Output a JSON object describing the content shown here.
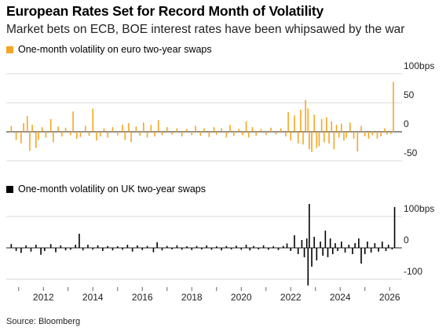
{
  "title": "European Rates Set for Record Month of Volatility",
  "subtitle": "Market bets on ECB, BOE interest rates have been whipsawed by the war",
  "source": "Source: Bloomberg",
  "colors": {
    "euro": "#f5a623",
    "uk": "#000000",
    "grid": "#d9d9d9",
    "zero": "#222222"
  },
  "x_ticks": [
    "2012",
    "2014",
    "2016",
    "2018",
    "2020",
    "2022",
    "2024",
    "2026"
  ],
  "chart_data": [
    {
      "type": "bar",
      "title": "",
      "legend": "One-month volatility on euro two-year swaps",
      "ylabel": "",
      "ylim": [
        -50,
        100
      ],
      "y_ticks": [
        "100bps",
        "50",
        "0",
        "-50"
      ],
      "x_range": [
        2010.5,
        2026.5
      ],
      "series": [
        {
          "values": [
            [
              2010.7,
              10
            ],
            [
              2010.9,
              -14
            ],
            [
              2011.1,
              -20
            ],
            [
              2011.2,
              15
            ],
            [
              2011.35,
              27
            ],
            [
              2011.45,
              -33
            ],
            [
              2011.55,
              12
            ],
            [
              2011.7,
              -28
            ],
            [
              2011.8,
              -14
            ],
            [
              2011.95,
              8
            ],
            [
              2012.1,
              -10
            ],
            [
              2012.3,
              22
            ],
            [
              2012.4,
              -18
            ],
            [
              2012.6,
              9
            ],
            [
              2012.75,
              -8
            ],
            [
              2012.9,
              7
            ],
            [
              2013.1,
              -6
            ],
            [
              2013.2,
              35
            ],
            [
              2013.35,
              -12
            ],
            [
              2013.5,
              -9
            ],
            [
              2013.7,
              10
            ],
            [
              2013.85,
              -7
            ],
            [
              2014.0,
              40
            ],
            [
              2014.15,
              -15
            ],
            [
              2014.3,
              -8
            ],
            [
              2014.45,
              6
            ],
            [
              2014.6,
              -10
            ],
            [
              2014.8,
              8
            ],
            [
              2015.0,
              -6
            ],
            [
              2015.2,
              12
            ],
            [
              2015.3,
              -14
            ],
            [
              2015.45,
              15
            ],
            [
              2015.55,
              -18
            ],
            [
              2015.75,
              9
            ],
            [
              2015.9,
              -7
            ],
            [
              2016.05,
              16
            ],
            [
              2016.2,
              -10
            ],
            [
              2016.35,
              12
            ],
            [
              2016.5,
              -8
            ],
            [
              2016.65,
              20
            ],
            [
              2016.8,
              -6
            ],
            [
              2017.0,
              8
            ],
            [
              2017.2,
              -5
            ],
            [
              2017.4,
              6
            ],
            [
              2017.6,
              -8
            ],
            [
              2017.8,
              5
            ],
            [
              2018.0,
              -6
            ],
            [
              2018.15,
              10
            ],
            [
              2018.35,
              -7
            ],
            [
              2018.5,
              6
            ],
            [
              2018.7,
              -9
            ],
            [
              2018.9,
              8
            ],
            [
              2019.0,
              -5
            ],
            [
              2019.2,
              6
            ],
            [
              2019.4,
              -10
            ],
            [
              2019.55,
              12
            ],
            [
              2019.7,
              -7
            ],
            [
              2019.9,
              5
            ],
            [
              2020.05,
              -6
            ],
            [
              2020.2,
              18
            ],
            [
              2020.3,
              -10
            ],
            [
              2020.45,
              8
            ],
            [
              2020.6,
              -7
            ],
            [
              2020.8,
              5
            ],
            [
              2021.0,
              -6
            ],
            [
              2021.2,
              7
            ],
            [
              2021.4,
              -5
            ],
            [
              2021.6,
              6
            ],
            [
              2021.8,
              -8
            ],
            [
              2021.9,
              34
            ],
            [
              2022.0,
              -15
            ],
            [
              2022.15,
              28
            ],
            [
              2022.3,
              -20
            ],
            [
              2022.4,
              38
            ],
            [
              2022.5,
              -22
            ],
            [
              2022.6,
              55
            ],
            [
              2022.7,
              40
            ],
            [
              2022.75,
              -30
            ],
            [
              2022.85,
              -35
            ],
            [
              2022.95,
              30
            ],
            [
              2023.05,
              -28
            ],
            [
              2023.15,
              -25
            ],
            [
              2023.25,
              22
            ],
            [
              2023.35,
              -18
            ],
            [
              2023.45,
              25
            ],
            [
              2023.55,
              -20
            ],
            [
              2023.65,
              18
            ],
            [
              2023.75,
              -30
            ],
            [
              2023.85,
              12
            ],
            [
              2023.95,
              -10
            ],
            [
              2024.05,
              14
            ],
            [
              2024.15,
              -15
            ],
            [
              2024.25,
              -10
            ],
            [
              2024.4,
              16
            ],
            [
              2024.55,
              -12
            ],
            [
              2024.7,
              -34
            ],
            [
              2024.85,
              10
            ],
            [
              2025.0,
              -8
            ],
            [
              2025.15,
              -12
            ],
            [
              2025.3,
              -6
            ],
            [
              2025.5,
              -12
            ],
            [
              2025.65,
              -8
            ],
            [
              2025.8,
              6
            ],
            [
              2025.9,
              -5
            ],
            [
              2026.05,
              -4
            ],
            [
              2026.15,
              86
            ]
          ]
        }
      ]
    },
    {
      "type": "bar",
      "title": "",
      "legend": "One-month volatility on UK two-year swaps",
      "ylabel": "",
      "ylim": [
        -120,
        140
      ],
      "y_ticks": [
        "100bps",
        "0",
        "-100"
      ],
      "x_range": [
        2010.5,
        2026.5
      ],
      "series": [
        {
          "values": [
            [
              2010.7,
              12
            ],
            [
              2010.9,
              -10
            ],
            [
              2011.1,
              -16
            ],
            [
              2011.3,
              8
            ],
            [
              2011.5,
              -12
            ],
            [
              2011.7,
              10
            ],
            [
              2011.9,
              -22
            ],
            [
              2012.05,
              -10
            ],
            [
              2012.3,
              12
            ],
            [
              2012.5,
              -14
            ],
            [
              2012.7,
              8
            ],
            [
              2012.9,
              -8
            ],
            [
              2013.1,
              -6
            ],
            [
              2013.3,
              10
            ],
            [
              2013.45,
              45
            ],
            [
              2013.6,
              -8
            ],
            [
              2013.8,
              10
            ],
            [
              2014.0,
              -6
            ],
            [
              2014.2,
              8
            ],
            [
              2014.4,
              -10
            ],
            [
              2014.6,
              6
            ],
            [
              2014.8,
              -8
            ],
            [
              2015.0,
              5
            ],
            [
              2015.2,
              -6
            ],
            [
              2015.4,
              10
            ],
            [
              2015.6,
              -12
            ],
            [
              2015.8,
              8
            ],
            [
              2016.0,
              -7
            ],
            [
              2016.2,
              6
            ],
            [
              2016.45,
              -14
            ],
            [
              2016.6,
              18
            ],
            [
              2016.8,
              -8
            ],
            [
              2017.0,
              6
            ],
            [
              2017.2,
              -5
            ],
            [
              2017.4,
              8
            ],
            [
              2017.6,
              -6
            ],
            [
              2017.8,
              5
            ],
            [
              2018.0,
              -7
            ],
            [
              2018.2,
              6
            ],
            [
              2018.4,
              -5
            ],
            [
              2018.6,
              8
            ],
            [
              2018.8,
              -6
            ],
            [
              2019.0,
              5
            ],
            [
              2019.2,
              -8
            ],
            [
              2019.4,
              6
            ],
            [
              2019.6,
              -5
            ],
            [
              2019.8,
              7
            ],
            [
              2020.0,
              -6
            ],
            [
              2020.2,
              10
            ],
            [
              2020.35,
              -8
            ],
            [
              2020.5,
              6
            ],
            [
              2020.7,
              -5
            ],
            [
              2020.9,
              8
            ],
            [
              2021.1,
              -6
            ],
            [
              2021.3,
              5
            ],
            [
              2021.5,
              -7
            ],
            [
              2021.7,
              6
            ],
            [
              2021.85,
              14
            ],
            [
              2022.0,
              -10
            ],
            [
              2022.15,
              40
            ],
            [
              2022.3,
              -20
            ],
            [
              2022.45,
              25
            ],
            [
              2022.55,
              -30
            ],
            [
              2022.65,
              30
            ],
            [
              2022.7,
              -120
            ],
            [
              2022.75,
              140
            ],
            [
              2022.85,
              -60
            ],
            [
              2022.95,
              35
            ],
            [
              2023.05,
              -40
            ],
            [
              2023.2,
              20
            ],
            [
              2023.3,
              -25
            ],
            [
              2023.4,
              55
            ],
            [
              2023.5,
              -30
            ],
            [
              2023.6,
              30
            ],
            [
              2023.7,
              -20
            ],
            [
              2023.8,
              15
            ],
            [
              2023.9,
              -10
            ],
            [
              2024.05,
              20
            ],
            [
              2024.2,
              -15
            ],
            [
              2024.35,
              10
            ],
            [
              2024.5,
              -20
            ],
            [
              2024.6,
              15
            ],
            [
              2024.75,
              30
            ],
            [
              2024.85,
              -50
            ],
            [
              2025.0,
              -20
            ],
            [
              2025.1,
              20
            ],
            [
              2025.25,
              -15
            ],
            [
              2025.4,
              15
            ],
            [
              2025.55,
              -12
            ],
            [
              2025.7,
              20
            ],
            [
              2025.85,
              -10
            ],
            [
              2025.95,
              10
            ],
            [
              2026.1,
              -5
            ],
            [
              2026.2,
              130
            ]
          ]
        }
      ]
    }
  ]
}
